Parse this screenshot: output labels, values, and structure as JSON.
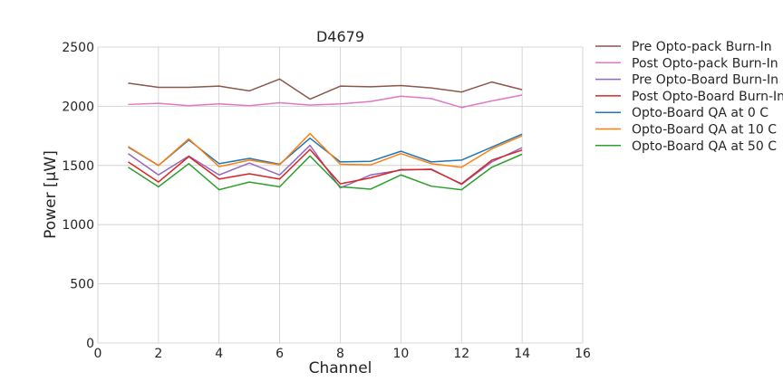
{
  "chart_data": {
    "type": "line",
    "title": "D4679",
    "xlabel": "Channel",
    "ylabel": "Power [μW]",
    "xlim": [
      0,
      16
    ],
    "ylim": [
      0,
      2500
    ],
    "xticks": [
      "0",
      "2",
      "4",
      "6",
      "8",
      "10",
      "12",
      "14",
      "16"
    ],
    "yticks": [
      "0",
      "500",
      "1000",
      "1500",
      "2000",
      "2500"
    ],
    "grid": true,
    "legend_position": "outside-right",
    "x": [
      1,
      2,
      3,
      4,
      5,
      6,
      7,
      8,
      9,
      10,
      11,
      12,
      13,
      14
    ],
    "series": [
      {
        "name": "Pre Opto-pack Burn-In",
        "color": "#8c564b",
        "values": [
          2195,
          2160,
          2160,
          2170,
          2130,
          2230,
          2060,
          2170,
          2165,
          2175,
          2155,
          2120,
          2205,
          2140
        ]
      },
      {
        "name": "Post Opto-pack Burn-In",
        "color": "#e377c2",
        "values": [
          2015,
          2025,
          2005,
          2020,
          2005,
          2030,
          2010,
          2020,
          2040,
          2085,
          2065,
          1990,
          2045,
          2095
        ]
      },
      {
        "name": "Pre Opto-Board Burn-In",
        "color": "#9467bd",
        "values": [
          1600,
          1420,
          1580,
          1420,
          1520,
          1420,
          1670,
          1310,
          1420,
          1460,
          1470,
          1340,
          1530,
          1650
        ]
      },
      {
        "name": "Post Opto-Board Burn-In",
        "color": "#d62728",
        "values": [
          1530,
          1360,
          1575,
          1385,
          1430,
          1385,
          1635,
          1345,
          1395,
          1465,
          1465,
          1345,
          1545,
          1630
        ]
      },
      {
        "name": "Opto-Board QA at 0 C",
        "color": "#1f77b4",
        "values": [
          1655,
          1500,
          1715,
          1515,
          1560,
          1510,
          1730,
          1530,
          1535,
          1620,
          1530,
          1545,
          1655,
          1765
        ]
      },
      {
        "name": "Opto-Board QA at 10 C",
        "color": "#ff7f0e",
        "values": [
          1660,
          1500,
          1725,
          1490,
          1545,
          1505,
          1770,
          1510,
          1505,
          1600,
          1515,
          1485,
          1640,
          1750
        ]
      },
      {
        "name": "Opto-Board QA at 50 C",
        "color": "#2ca02c",
        "values": [
          1485,
          1320,
          1515,
          1295,
          1360,
          1320,
          1580,
          1320,
          1300,
          1420,
          1325,
          1295,
          1485,
          1595
        ]
      }
    ]
  },
  "colors": {
    "grid": "#cccccc",
    "background": "#ffffff",
    "text": "#262626"
  }
}
